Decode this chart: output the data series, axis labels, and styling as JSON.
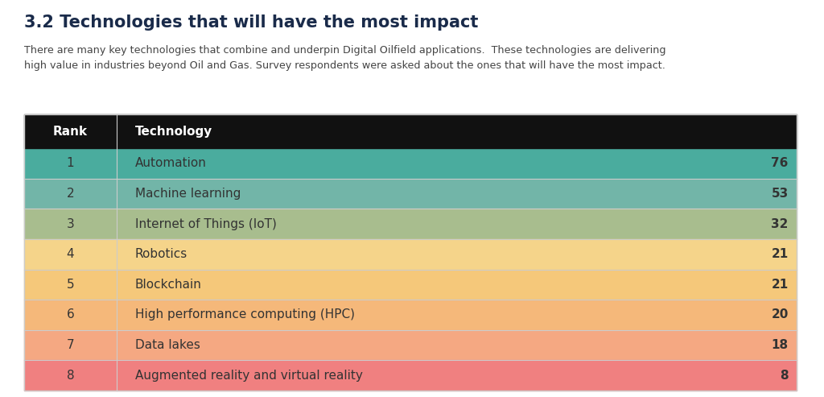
{
  "title": "3.2 Technologies that will have the most impact",
  "subtitle": "There are many key technologies that combine and underpin Digital Oilfield applications.  These technologies are delivering\nhigh value in industries beyond Oil and Gas. Survey respondents were asked about the ones that will have the most impact.",
  "header": [
    "Rank",
    "Technology"
  ],
  "rows": [
    {
      "rank": "1",
      "technology": "Automation",
      "value": "76"
    },
    {
      "rank": "2",
      "technology": "Machine learning",
      "value": "53"
    },
    {
      "rank": "3",
      "technology": "Internet of Things (IoT)",
      "value": "32"
    },
    {
      "rank": "4",
      "technology": "Robotics",
      "value": "21"
    },
    {
      "rank": "5",
      "technology": "Blockchain",
      "value": "21"
    },
    {
      "rank": "6",
      "technology": "High performance computing (HPC)",
      "value": "20"
    },
    {
      "rank": "7",
      "technology": "Data lakes",
      "value": "18"
    },
    {
      "rank": "8",
      "technology": "Augmented reality and virtual reality",
      "value": "8"
    }
  ],
  "row_colors": [
    "#4aac9e",
    "#72b5a8",
    "#a8bd8e",
    "#f5d48a",
    "#f5c87a",
    "#f5b87a",
    "#f5a882",
    "#f08080"
  ],
  "header_bg": "#111111",
  "header_text_color": "#ffffff",
  "title_color": "#1a2b4a",
  "subtitle_color": "#444444",
  "rank_text_color": "#333333",
  "background_color": "#ffffff",
  "divider_color": "#cccccc"
}
